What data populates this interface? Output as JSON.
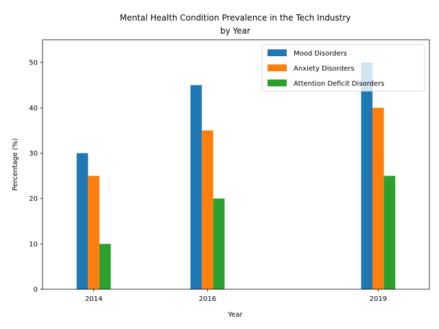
{
  "chart_data": {
    "type": "bar",
    "title": [
      "Mental Health Condition Prevalence in the Tech Industry",
      "by Year"
    ],
    "xlabel": "Year",
    "ylabel": "Percentage (%)",
    "x": [
      2014,
      2016,
      2019
    ],
    "xlim": [
      2013.1,
      2019.9
    ],
    "ylim": [
      0,
      55
    ],
    "yticks": [
      0,
      10,
      20,
      30,
      40,
      50
    ],
    "bar_width": 0.2,
    "legend_position": "upper right",
    "grid": false,
    "series": [
      {
        "name": "Mood Disorders",
        "color": "#1f77b4",
        "values": [
          30,
          45,
          50
        ]
      },
      {
        "name": "Anxiety Disorders",
        "color": "#ff7f0e",
        "values": [
          25,
          35,
          40
        ]
      },
      {
        "name": "Attention Deficit Disorders",
        "color": "#2ca02c",
        "values": [
          10,
          20,
          25
        ]
      }
    ]
  }
}
